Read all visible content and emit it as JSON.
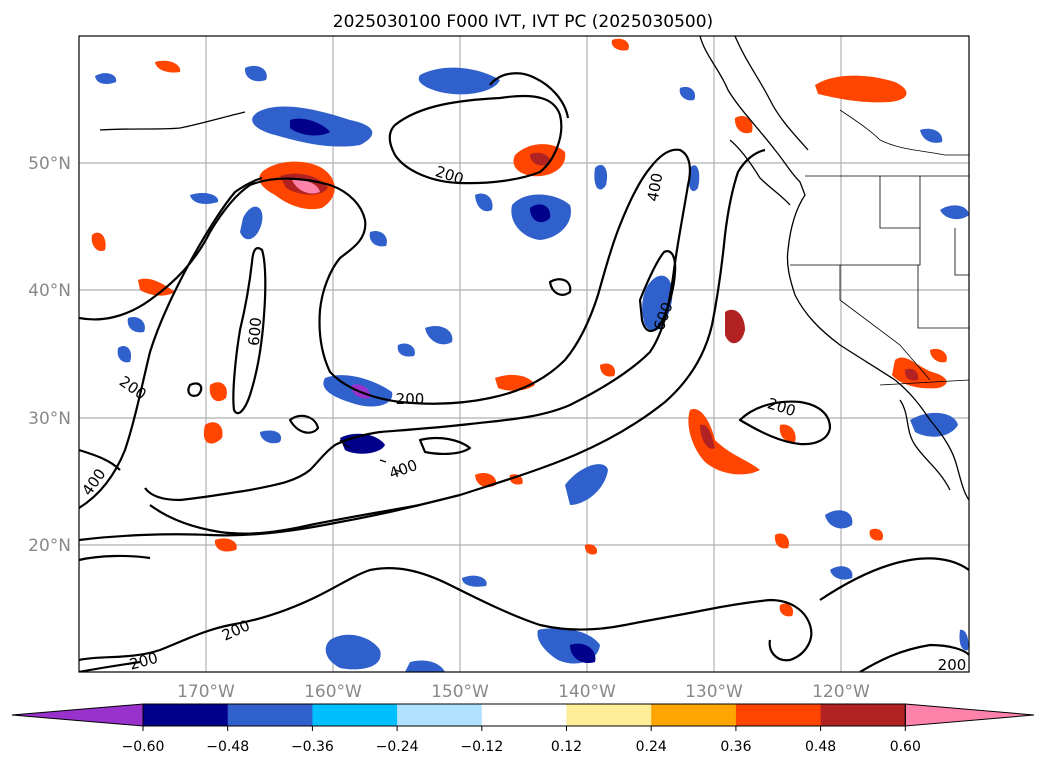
{
  "title": "2025030100 F000 IVT, IVT PC (2025030500)",
  "lat_labels": [
    "50°N",
    "40°N",
    "30°N",
    "20°N"
  ],
  "lon_labels": [
    "170°W",
    "160°W",
    "150°W",
    "140°W",
    "130°W",
    "120°W"
  ],
  "contour_labels": [
    "200",
    "400",
    "600",
    "600",
    "200",
    "200",
    "400",
    "400",
    "200",
    "200",
    "200",
    "200"
  ],
  "colorbar": {
    "ticks": [
      "−0.60",
      "−0.48",
      "−0.36",
      "−0.24",
      "−0.12",
      "0.12",
      "0.24",
      "0.36",
      "0.48",
      "0.60"
    ],
    "colors": [
      "#9932cc",
      "#00008b",
      "#3060cc",
      "#00bfff",
      "#b0e2ff",
      "#ffffff",
      "#ffee99",
      "#ffa500",
      "#ff4500",
      "#b22222",
      "#ff82ab"
    ]
  }
}
